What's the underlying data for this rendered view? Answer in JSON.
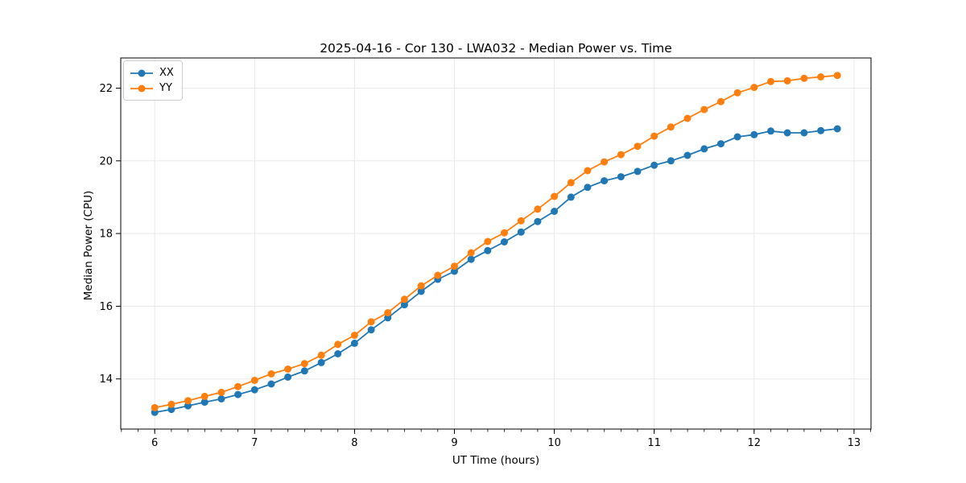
{
  "figure": {
    "background": "#ffffff"
  },
  "chart_data": {
    "type": "line",
    "title": "2025-04-16 - Cor 130 - LWA032 - Median Power vs. Time",
    "xlabel": "UT Time (hours)",
    "ylabel": "Median Power (CPU)",
    "xlim": [
      5.66,
      13.17
    ],
    "ylim": [
      12.62,
      22.83
    ],
    "xticks": [
      6,
      7,
      8,
      9,
      10,
      11,
      12,
      13
    ],
    "yticks": [
      14,
      16,
      18,
      20,
      22
    ],
    "x_minor_step": 0.16667,
    "grid": true,
    "legend_position": "upper left",
    "x": [
      6.0,
      6.167,
      6.333,
      6.5,
      6.667,
      6.833,
      7.0,
      7.167,
      7.333,
      7.5,
      7.667,
      7.833,
      8.0,
      8.167,
      8.333,
      8.5,
      8.667,
      8.833,
      9.0,
      9.167,
      9.333,
      9.5,
      9.667,
      9.833,
      10.0,
      10.167,
      10.333,
      10.5,
      10.667,
      10.833,
      11.0,
      11.167,
      11.333,
      11.5,
      11.667,
      11.833,
      12.0,
      12.167,
      12.333,
      12.5,
      12.667,
      12.833
    ],
    "series": [
      {
        "name": "XX",
        "color": "#1f77b4",
        "values": [
          13.08,
          13.16,
          13.26,
          13.36,
          13.45,
          13.57,
          13.7,
          13.86,
          14.05,
          14.22,
          14.45,
          14.69,
          14.98,
          15.35,
          15.68,
          16.04,
          16.41,
          16.74,
          16.96,
          17.29,
          17.53,
          17.77,
          18.04,
          18.33,
          18.61,
          19.0,
          19.27,
          19.45,
          19.56,
          19.71,
          19.88,
          20.0,
          20.15,
          20.33,
          20.47,
          20.66,
          20.72,
          20.82,
          20.77,
          20.77,
          20.83,
          20.88
        ]
      },
      {
        "name": "YY",
        "color": "#ff7f0e",
        "values": [
          13.21,
          13.3,
          13.4,
          13.52,
          13.63,
          13.79,
          13.96,
          14.14,
          14.27,
          14.42,
          14.65,
          14.95,
          15.2,
          15.57,
          15.82,
          16.19,
          16.56,
          16.85,
          17.1,
          17.47,
          17.78,
          18.02,
          18.35,
          18.67,
          19.02,
          19.4,
          19.73,
          19.97,
          20.17,
          20.4,
          20.68,
          20.93,
          21.17,
          21.41,
          21.63,
          21.87,
          22.02,
          22.18,
          22.2,
          22.27,
          22.31,
          22.35
        ]
      }
    ]
  },
  "style": {
    "grid_color": "#e8e8e8",
    "spine_color": "#000000",
    "tick_color": "#000000",
    "tick_label_color": "#000000",
    "marker_radius": 4.5,
    "line_width": 1.8
  }
}
